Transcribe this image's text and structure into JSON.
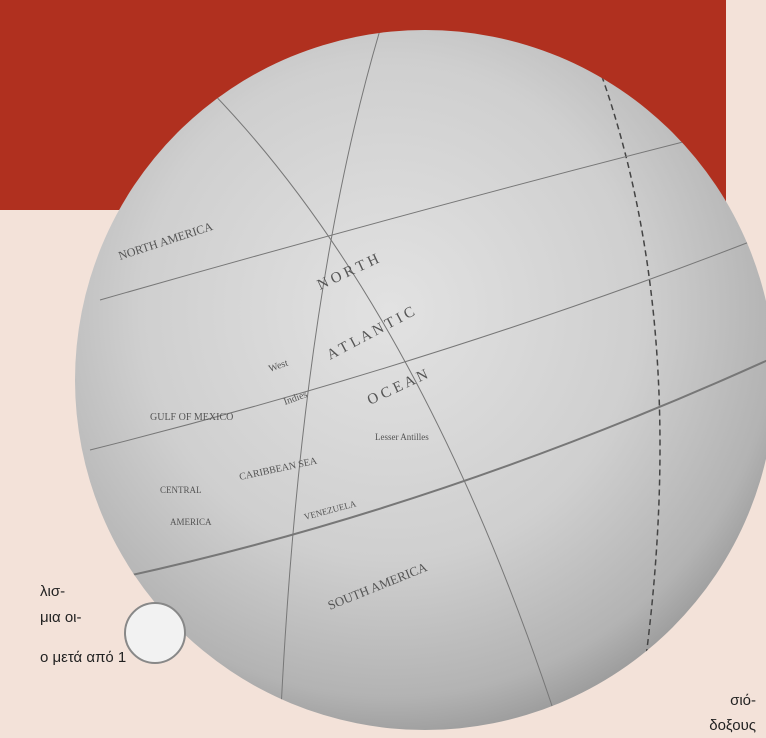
{
  "page_text": {
    "left_lines": [
      "λισ-",
      "μια οι-",
      "ο μετά από 1"
    ],
    "right_lines": [
      "σιό-",
      "δοξους"
    ]
  },
  "globe_labels": {
    "north": "N O R T H",
    "atlantic": "A T L A N T I C",
    "ocean": "O C E A N",
    "north_america": "NORTH AMERICA",
    "gulf": "GULF OF MEXICO",
    "caribbean": "CARIBBEAN SEA",
    "west": "West",
    "indies": "Indies",
    "central": "CENTRAL",
    "america": "AMERICA",
    "south_america": "SOUTH AMERICA",
    "lesser_antilles": "Lesser Antilles",
    "venezuela": "VENEZUELA"
  }
}
